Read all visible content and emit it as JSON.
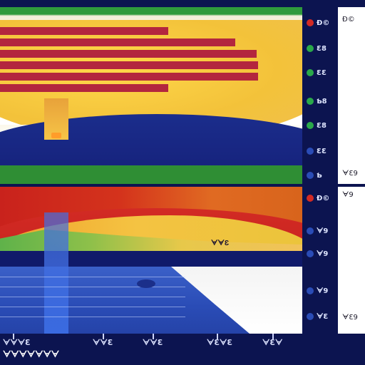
{
  "legend_top": {
    "items": [
      {
        "text": "Ð©",
        "swatch": "#d22a24"
      },
      {
        "text": "Ɛ8",
        "swatch": "#2aa84a"
      },
      {
        "text": "ƐƐ",
        "swatch": "#2aa84a"
      },
      {
        "text": "Ƅ8",
        "swatch": "#2aa84a"
      },
      {
        "text": "Ɛ8",
        "swatch": "#2aa84a"
      },
      {
        "text": "ƐƐ",
        "swatch": "#2a4cb6"
      },
      {
        "text": "Ƅ",
        "swatch": "#2a4cb6"
      }
    ]
  },
  "legend_bot": {
    "items": [
      {
        "text": "Ð©",
        "swatch": "#d22a24"
      },
      {
        "text": "ᗄ9",
        "swatch": "#2a4cb6"
      },
      {
        "text": "ᗄ9",
        "swatch": "#2a4cb6"
      },
      {
        "text": "ᗄ9",
        "swatch": "#2a4cb6"
      },
      {
        "text": "ᗄƐ",
        "swatch": "#2a4cb6"
      }
    ]
  },
  "side_top": {
    "labels": [
      "Ð©",
      "ᗄƐ9"
    ]
  },
  "side_bot": {
    "labels": [
      "ᗄ9",
      "ᗄƐ9"
    ]
  },
  "panel_bot": {
    "label": "ᗄᗄƐ"
  },
  "axis": {
    "ticks": [
      "ᗄᗄᗄƐ",
      "ᗄᗄƐ",
      "ᗄᗄƐ",
      "ᗄƐᗄƐ",
      "ᗄƐᗄ"
    ],
    "title": "ᗄᗄᗄᗄᗄᗄᗄ"
  }
}
